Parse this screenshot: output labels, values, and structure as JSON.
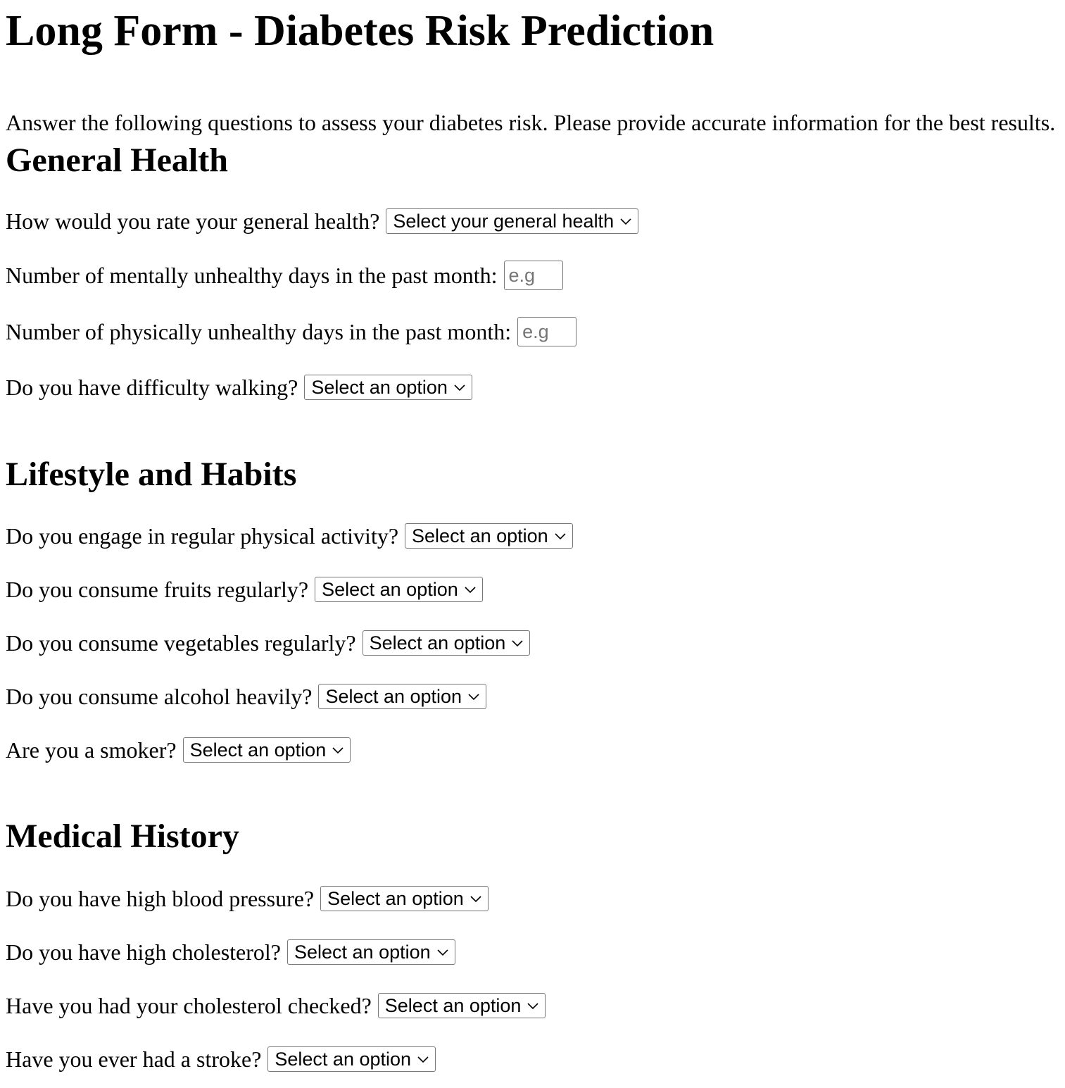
{
  "title": "Long Form - Diabetes Risk Prediction",
  "intro": "Answer the following questions to assess your diabetes risk. Please provide accurate information for the best results.",
  "sections": [
    {
      "heading": "General Health",
      "questions": [
        {
          "label": "How would you rate your general health?",
          "type": "select",
          "value": "Select your general health"
        },
        {
          "label": "Number of mentally unhealthy days in the past month:",
          "type": "input",
          "placeholder": "e.g"
        },
        {
          "label": "Number of physically unhealthy days in the past month:",
          "type": "input",
          "placeholder": "e.g"
        },
        {
          "label": "Do you have difficulty walking?",
          "type": "select",
          "value": "Select an option"
        }
      ]
    },
    {
      "heading": "Lifestyle and Habits",
      "questions": [
        {
          "label": "Do you engage in regular physical activity?",
          "type": "select",
          "value": "Select an option"
        },
        {
          "label": "Do you consume fruits regularly?",
          "type": "select",
          "value": "Select an option"
        },
        {
          "label": "Do you consume vegetables regularly?",
          "type": "select",
          "value": "Select an option"
        },
        {
          "label": "Do you consume alcohol heavily?",
          "type": "select",
          "value": "Select an option"
        },
        {
          "label": "Are you a smoker?",
          "type": "select",
          "value": "Select an option"
        }
      ]
    },
    {
      "heading": "Medical History",
      "questions": [
        {
          "label": "Do you have high blood pressure?",
          "type": "select",
          "value": "Select an option"
        },
        {
          "label": "Do you have high cholesterol?",
          "type": "select",
          "value": "Select an option"
        },
        {
          "label": "Have you had your cholesterol checked?",
          "type": "select",
          "value": "Select an option"
        },
        {
          "label": "Have you ever had a stroke?",
          "type": "select",
          "value": "Select an option"
        }
      ]
    }
  ]
}
